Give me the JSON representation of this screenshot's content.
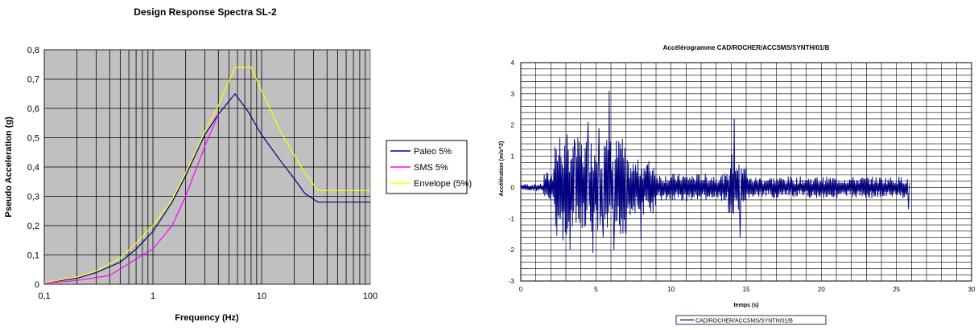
{
  "chart_data": [
    {
      "type": "line",
      "title": "Design Response Spectra SL-2",
      "xlabel": "Frequency (Hz)",
      "ylabel": "Pseudo Acceleration (g)",
      "x_scale": "log",
      "xlim": [
        0.1,
        100
      ],
      "ylim": [
        0,
        0.8
      ],
      "x_ticks": [
        "0,1",
        "1",
        "10",
        "100"
      ],
      "y_ticks": [
        "0",
        "0,1",
        "0,2",
        "0,3",
        "0,4",
        "0,5",
        "0,6",
        "0,7",
        "0,8"
      ],
      "grid": true,
      "plot_background": "#c0c0c0",
      "legend_position": "right",
      "series": [
        {
          "name": "Paleo 5%",
          "color": "#000080",
          "x": [
            0.1,
            0.2,
            0.3,
            0.5,
            0.7,
            1.0,
            1.5,
            2.0,
            3.0,
            4.0,
            5.7,
            7.5,
            10,
            15,
            20,
            25,
            33,
            100
          ],
          "y": [
            0.005,
            0.02,
            0.04,
            0.075,
            0.12,
            0.18,
            0.28,
            0.37,
            0.51,
            0.58,
            0.65,
            0.59,
            0.51,
            0.42,
            0.36,
            0.31,
            0.28,
            0.28
          ]
        },
        {
          "name": "SMS 5%",
          "color": "#ff00ff",
          "x": [
            0.1,
            0.2,
            0.4,
            0.6,
            0.8,
            1.0,
            1.5,
            2.0,
            3.0,
            4.0
          ],
          "y": [
            0.003,
            0.013,
            0.03,
            0.07,
            0.1,
            0.12,
            0.2,
            0.3,
            0.47,
            0.58
          ]
        },
        {
          "name": "Envelope (5%)",
          "color": "#ffff00",
          "x": [
            0.1,
            0.2,
            0.3,
            0.5,
            0.7,
            1.0,
            1.5,
            2.0,
            3.0,
            4.0,
            5.7,
            8.0,
            10,
            15,
            20,
            25,
            33,
            100
          ],
          "y": [
            0.005,
            0.025,
            0.045,
            0.09,
            0.14,
            0.2,
            0.29,
            0.38,
            0.52,
            0.61,
            0.74,
            0.74,
            0.66,
            0.52,
            0.44,
            0.38,
            0.32,
            0.32
          ]
        }
      ]
    },
    {
      "type": "line",
      "title": "Accélérogramme CAD/ROCHER/ACCSMS/SYNTH/01/B",
      "xlabel": "temps (s)",
      "ylabel": "Accélération (m/s^2)",
      "xlim": [
        0,
        30
      ],
      "ylim": [
        -3,
        4
      ],
      "x_ticks": [
        "0",
        "5",
        "10",
        "15",
        "20",
        "25",
        "30"
      ],
      "y_ticks": [
        "-3",
        "-2",
        "-1",
        "0",
        "1",
        "2",
        "3",
        "4"
      ],
      "grid": true,
      "legend_position": "bottom",
      "duration": 25.9,
      "series": [
        {
          "name": "CAD/ROCHER/ACCSMS/SYNTH/01/B",
          "color": "#000080",
          "peaks": [
            {
              "t": 2.3,
              "a": 1.3
            },
            {
              "t": 2.5,
              "a": -0.9
            },
            {
              "t": 2.6,
              "a": 1.6
            },
            {
              "t": 2.8,
              "a": -1.7
            },
            {
              "t": 3.1,
              "a": 1.7
            },
            {
              "t": 3.3,
              "a": -2.0
            },
            {
              "t": 3.6,
              "a": 1.4
            },
            {
              "t": 4.1,
              "a": -1.3
            },
            {
              "t": 4.5,
              "a": 2.1
            },
            {
              "t": 4.8,
              "a": -2.1
            },
            {
              "t": 5.2,
              "a": 1.9
            },
            {
              "t": 5.5,
              "a": -1.6
            },
            {
              "t": 5.9,
              "a": 3.1
            },
            {
              "t": 6.2,
              "a": -2.0
            },
            {
              "t": 6.6,
              "a": 1.4
            },
            {
              "t": 7.0,
              "a": -1.5
            },
            {
              "t": 8.0,
              "a": -1.7
            },
            {
              "t": 14.2,
              "a": 2.2
            },
            {
              "t": 14.6,
              "a": -1.6
            },
            {
              "t": 25.8,
              "a": -0.7
            }
          ]
        }
      ]
    }
  ]
}
